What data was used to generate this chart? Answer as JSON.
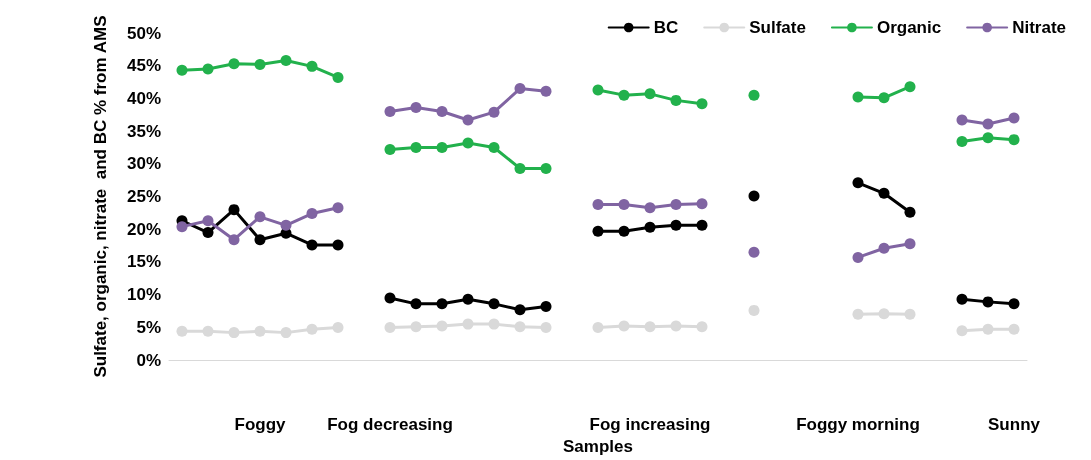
{
  "chart_data": {
    "type": "line",
    "xlabel": "Samples",
    "ylabel": "Sulfate, organic, nitrate  and BC % from AMS",
    "categories": [
      null,
      null,
      null,
      "Foggy",
      null,
      null,
      null,
      null,
      "Fog decreasing",
      null,
      null,
      null,
      null,
      null,
      null,
      null,
      null,
      null,
      "Fog increasing",
      null,
      null,
      null,
      null,
      null,
      null,
      null,
      "Foggy morning",
      null,
      null,
      null,
      null,
      null,
      "Sunny"
    ],
    "ylim": [
      0,
      50
    ],
    "yticks": [
      {
        "value": 0,
        "label": "0%"
      },
      {
        "value": 5,
        "label": "5%"
      },
      {
        "value": 10,
        "label": "10%"
      },
      {
        "value": 15,
        "label": "15%"
      },
      {
        "value": 20,
        "label": "20%"
      },
      {
        "value": 25,
        "label": "25%"
      },
      {
        "value": 30,
        "label": "30%"
      },
      {
        "value": 35,
        "label": "35%"
      },
      {
        "value": 40,
        "label": "40%"
      },
      {
        "value": 45,
        "label": "45%"
      },
      {
        "value": 50,
        "label": "50%"
      }
    ],
    "series": [
      {
        "name": "BC",
        "color": "#000000",
        "values": [
          21.3,
          19.5,
          23.0,
          18.4,
          19.4,
          17.6,
          17.6,
          null,
          9.5,
          8.6,
          8.6,
          9.3,
          8.6,
          7.7,
          8.2,
          null,
          19.7,
          19.7,
          20.3,
          20.6,
          20.6,
          null,
          25.1,
          null,
          null,
          null,
          27.1,
          25.5,
          22.6,
          null,
          9.3,
          8.9,
          8.6
        ]
      },
      {
        "name": "Sulfate",
        "color": "#d9d9d9",
        "values": [
          4.4,
          4.4,
          4.2,
          4.4,
          4.2,
          4.7,
          5.0,
          null,
          5.0,
          5.1,
          5.2,
          5.5,
          5.5,
          5.1,
          5.0,
          null,
          5.0,
          5.2,
          5.1,
          5.2,
          5.1,
          null,
          7.6,
          null,
          null,
          null,
          7.0,
          7.1,
          7.0,
          null,
          4.5,
          4.7,
          4.7
        ]
      },
      {
        "name": "Organic",
        "color": "#22b14c",
        "values": [
          44.3,
          44.5,
          45.3,
          45.2,
          45.8,
          44.9,
          43.2,
          null,
          32.2,
          32.5,
          32.5,
          33.2,
          32.5,
          29.3,
          29.3,
          null,
          41.3,
          40.5,
          40.7,
          39.7,
          39.2,
          null,
          40.5,
          null,
          null,
          null,
          40.2,
          40.1,
          41.8,
          null,
          33.4,
          34.0,
          33.7
        ]
      },
      {
        "name": "Nitrate",
        "color": "#8064a2",
        "values": [
          20.4,
          21.3,
          18.4,
          21.9,
          20.6,
          22.4,
          23.3,
          null,
          38.0,
          38.6,
          38.0,
          36.7,
          37.9,
          41.5,
          41.1,
          null,
          23.8,
          23.8,
          23.3,
          23.8,
          23.9,
          null,
          16.5,
          null,
          null,
          null,
          15.7,
          17.1,
          17.8,
          null,
          36.7,
          36.1,
          37.0
        ]
      }
    ],
    "legend": "top right",
    "marker": "circle",
    "line_style": "solid",
    "grid": false
  }
}
